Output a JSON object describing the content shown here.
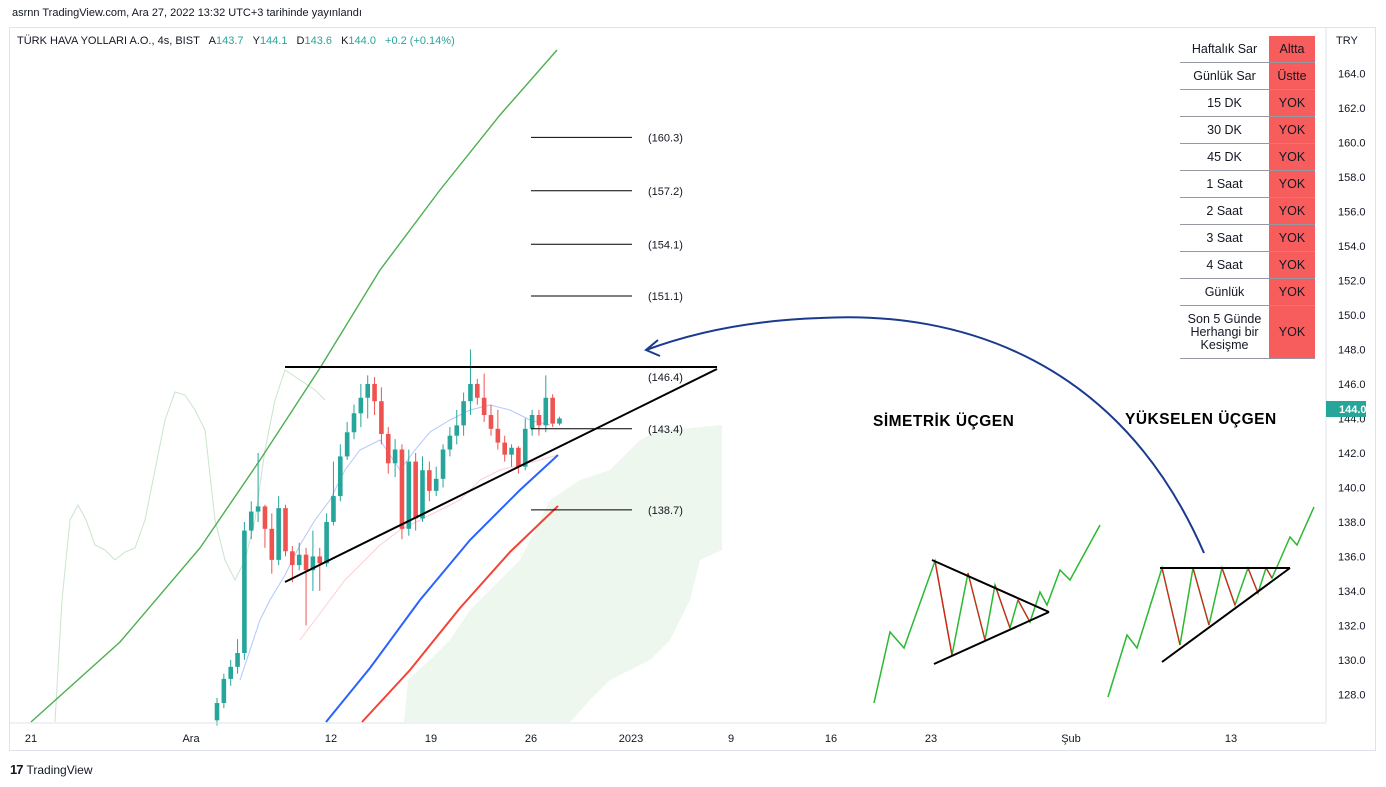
{
  "header": {
    "published": "asrnn TradingView.com, Ara 27, 2022 13:32 UTC+3 tarihinde yayınlandı"
  },
  "legend": {
    "symbol": "TÜRK HAVA YOLLARI A.O., 4s, BIST",
    "open_label": "A",
    "open": "143.7",
    "high_label": "Y",
    "high": "144.1",
    "low_label": "D",
    "low": "143.6",
    "close_label": "K",
    "close": "144.0",
    "change": "+0.2 (+0.14%)"
  },
  "sar_table": [
    {
      "label": "Haftalık Sar",
      "status": "Altta"
    },
    {
      "label": "Günlük Sar",
      "status": "Üstte"
    },
    {
      "label": "15 DK",
      "status": "YOK"
    },
    {
      "label": "30 DK",
      "status": "YOK"
    },
    {
      "label": "45 DK",
      "status": "YOK"
    },
    {
      "label": "1 Saat",
      "status": "YOK"
    },
    {
      "label": "2 Saat",
      "status": "YOK"
    },
    {
      "label": "3 Saat",
      "status": "YOK"
    },
    {
      "label": "4 Saat",
      "status": "YOK"
    },
    {
      "label": "Günlük",
      "status": "YOK"
    },
    {
      "label": "Son 5 Günde Herhangi bir Kesişme",
      "status": "YOK"
    }
  ],
  "footer": {
    "logo": "17",
    "brand": "TradingView"
  },
  "colors": {
    "up": "#26a69a",
    "down": "#ef5350",
    "status_bg": "#f85d5d",
    "price_badge": "#26a69a",
    "sma_green": "#4caf50",
    "sma_blue": "#2962ff",
    "sma_red": "#f44336",
    "arrow": "#1a3a8f"
  },
  "chart_data": {
    "type": "candlestick",
    "currency": "TRY",
    "y_ticks": [
      128.0,
      130.0,
      132.0,
      134.0,
      136.0,
      138.0,
      140.0,
      142.0,
      144.0,
      146.0,
      148.0,
      150.0,
      152.0,
      154.0,
      156.0,
      158.0,
      160.0,
      162.0,
      164.0
    ],
    "ylim": [
      126.4,
      164.9
    ],
    "x_ticks": [
      "21",
      "Ara",
      "12",
      "19",
      "26",
      "2023",
      "9",
      "16",
      "23",
      "Şub",
      "13"
    ],
    "last_price": "144.0",
    "fib_levels": [
      {
        "value": 160.3,
        "label": "(160.3)"
      },
      {
        "value": 157.2,
        "label": "(157.2)"
      },
      {
        "value": 154.1,
        "label": "(154.1)"
      },
      {
        "value": 151.1,
        "label": "(151.1)"
      },
      {
        "value": 146.4,
        "label": "(146.4)"
      },
      {
        "value": 143.4,
        "label": "(143.4)"
      },
      {
        "value": 138.7,
        "label": "(138.7)"
      }
    ],
    "annotations": [
      {
        "text": "SİMETRİK ÜÇGEN"
      },
      {
        "text": "YÜKSELEN ÜÇGEN"
      }
    ],
    "candles": [
      [
        126.5,
        127.8,
        126.2,
        127.5
      ],
      [
        127.5,
        129.2,
        127.2,
        128.9
      ],
      [
        128.9,
        130.0,
        128.5,
        129.6
      ],
      [
        129.6,
        131.2,
        129.2,
        130.4
      ],
      [
        130.4,
        138.0,
        130.0,
        137.5
      ],
      [
        137.5,
        139.2,
        137.0,
        138.6
      ],
      [
        138.6,
        142.0,
        138.0,
        138.9
      ],
      [
        138.9,
        139.0,
        136.5,
        137.6
      ],
      [
        137.6,
        138.5,
        135.0,
        135.8
      ],
      [
        135.8,
        139.5,
        135.5,
        138.8
      ],
      [
        138.8,
        139.0,
        136.0,
        136.3
      ],
      [
        136.3,
        136.6,
        134.5,
        135.5
      ],
      [
        135.5,
        136.8,
        135.2,
        136.1
      ],
      [
        136.1,
        136.5,
        132.0,
        135.2
      ],
      [
        135.2,
        137.5,
        134.0,
        136.0
      ],
      [
        136.0,
        136.5,
        134.0,
        135.6
      ],
      [
        135.6,
        138.5,
        135.4,
        138.0
      ],
      [
        138.0,
        141.5,
        137.8,
        139.5
      ],
      [
        139.5,
        142.5,
        139.2,
        141.8
      ],
      [
        141.8,
        143.8,
        141.6,
        143.2
      ],
      [
        143.2,
        144.8,
        142.8,
        144.3
      ],
      [
        144.3,
        146.0,
        143.5,
        145.2
      ],
      [
        145.2,
        146.5,
        144.0,
        146.0
      ],
      [
        146.0,
        146.4,
        144.2,
        145.0
      ],
      [
        145.0,
        145.8,
        142.5,
        143.1
      ],
      [
        143.1,
        143.5,
        140.8,
        141.4
      ],
      [
        141.4,
        142.8,
        140.6,
        142.2
      ],
      [
        142.2,
        142.5,
        137.0,
        137.6
      ],
      [
        137.6,
        142.2,
        137.2,
        141.5
      ],
      [
        141.5,
        142.0,
        137.5,
        138.2
      ],
      [
        138.2,
        141.8,
        138.0,
        141.0
      ],
      [
        141.0,
        141.5,
        139.2,
        139.8
      ],
      [
        139.8,
        141.2,
        139.5,
        140.5
      ],
      [
        140.5,
        142.5,
        140.0,
        142.2
      ],
      [
        142.2,
        143.5,
        141.8,
        143.0
      ],
      [
        143.0,
        144.5,
        142.5,
        143.6
      ],
      [
        143.6,
        145.5,
        143.0,
        145.0
      ],
      [
        145.0,
        148.0,
        144.2,
        146.0
      ],
      [
        146.0,
        146.3,
        144.8,
        145.2
      ],
      [
        145.2,
        146.6,
        143.8,
        144.2
      ],
      [
        144.2,
        144.8,
        143.0,
        143.4
      ],
      [
        143.4,
        144.5,
        142.2,
        142.6
      ],
      [
        142.6,
        143.0,
        141.5,
        141.9
      ],
      [
        141.9,
        142.5,
        141.2,
        142.3
      ],
      [
        142.3,
        142.4,
        140.8,
        141.2
      ],
      [
        141.2,
        144.0,
        141.0,
        143.4
      ],
      [
        143.4,
        144.5,
        143.0,
        144.2
      ],
      [
        144.2,
        144.5,
        143.0,
        143.6
      ],
      [
        143.6,
        146.5,
        143.2,
        145.2
      ],
      [
        145.2,
        145.4,
        143.5,
        143.7
      ],
      [
        143.7,
        144.1,
        143.6,
        144.0
      ]
    ],
    "sma_green": [
      [
        31,
        722
      ],
      [
        120,
        642
      ],
      [
        200,
        548
      ],
      [
        260,
        460
      ],
      [
        320,
        368
      ],
      [
        380,
        270
      ],
      [
        440,
        190
      ],
      [
        500,
        115
      ],
      [
        557,
        50
      ]
    ],
    "sma_blue": [
      [
        326,
        722
      ],
      [
        370,
        668
      ],
      [
        420,
        600
      ],
      [
        470,
        540
      ],
      [
        520,
        490
      ],
      [
        558,
        455
      ]
    ],
    "sma_red": [
      [
        362,
        722
      ],
      [
        410,
        670
      ],
      [
        460,
        608
      ],
      [
        510,
        552
      ],
      [
        558,
        506
      ]
    ]
  }
}
